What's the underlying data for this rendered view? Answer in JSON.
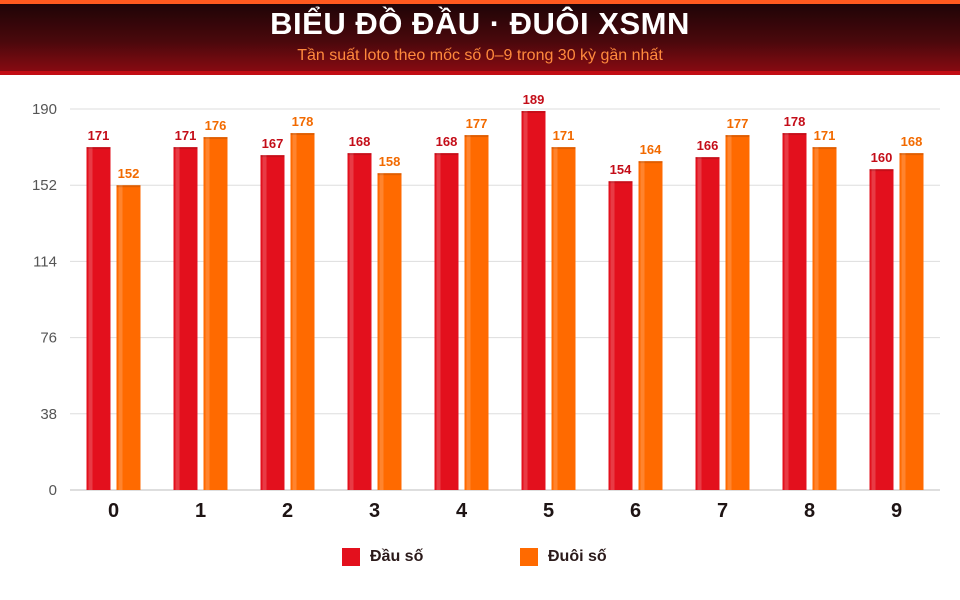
{
  "header": {
    "title": "BIỂU ĐỒ ĐẦU · ĐUÔI XSMN",
    "subtitle": "Tần suất loto theo mốc số 0–9 trong 30 kỳ gần nhất"
  },
  "colors": {
    "dau": "#e3101d",
    "duoi": "#ff6a00",
    "grid": "#dddddd",
    "header_bg": "#3a0508"
  },
  "legend": [
    {
      "label": "Đầu số",
      "color": "#e3101d"
    },
    {
      "label": "Đuôi số",
      "color": "#ff6a00"
    }
  ],
  "chart_data": {
    "type": "bar",
    "title": "BIỂU ĐỒ ĐẦU · ĐUÔI XSMN",
    "subtitle": "Tần suất loto theo mốc số 0–9 trong 30 kỳ gần nhất",
    "categories": [
      "0",
      "1",
      "2",
      "3",
      "4",
      "5",
      "6",
      "7",
      "8",
      "9"
    ],
    "series": [
      {
        "name": "Đầu số",
        "color": "#e3101d",
        "values": [
          171,
          171,
          167,
          168,
          168,
          189,
          154,
          166,
          178,
          160
        ]
      },
      {
        "name": "Đuôi số",
        "color": "#ff6a00",
        "values": [
          152,
          176,
          178,
          158,
          177,
          171,
          164,
          177,
          171,
          168
        ]
      }
    ],
    "yticks": [
      0,
      38,
      76,
      114,
      152,
      190
    ],
    "ylim": [
      0,
      190
    ],
    "grid": true,
    "legend_position": "bottom-center",
    "data_labels": true
  }
}
